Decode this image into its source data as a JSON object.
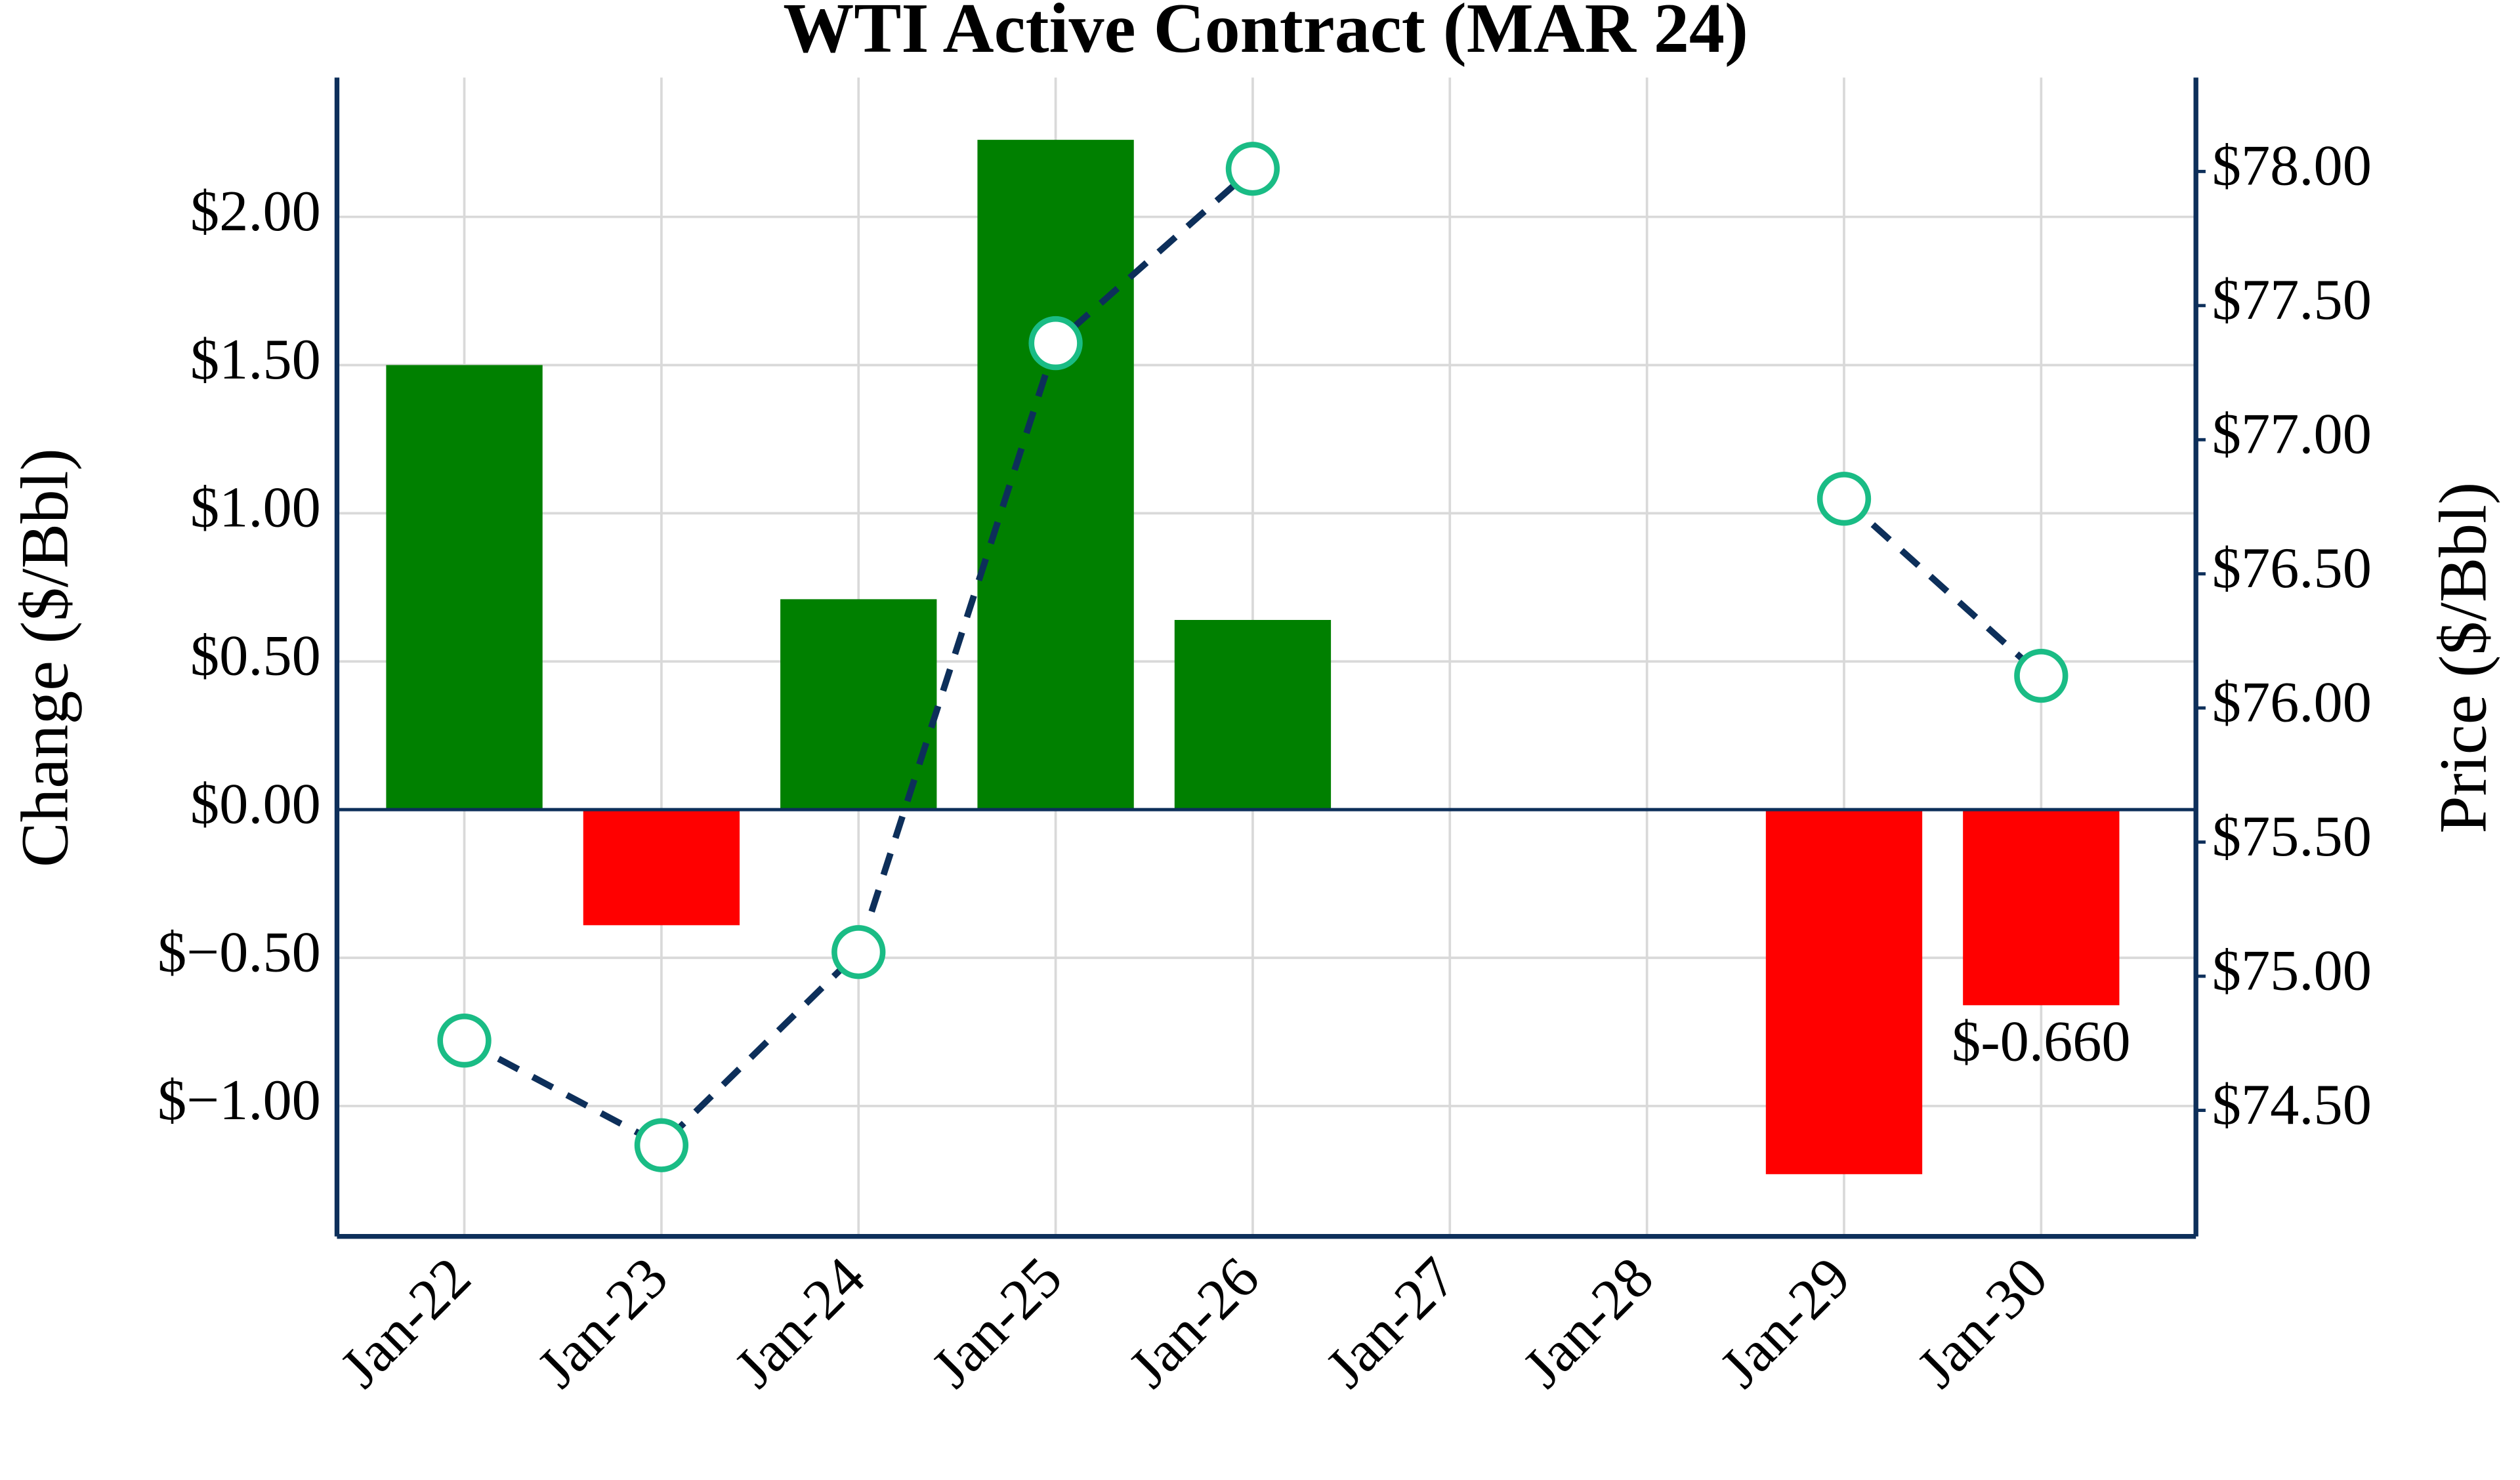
{
  "chart_data": {
    "type": "bar",
    "title": "WTI Active Contract (MAR 24)",
    "y_label": "Change ($/Bbl)",
    "y2_label": "Price ($/Bbl)",
    "categories": [
      "Jan-22",
      "Jan-23",
      "Jan-24",
      "Jan-25",
      "Jan-26",
      "Jan-27",
      "Jan-28",
      "Jan-29",
      "Jan-30"
    ],
    "series": [
      {
        "type": "bar",
        "values": [
          1.5,
          -0.39,
          0.71,
          2.26,
          0.64,
          null,
          null,
          -1.23,
          -0.66
        ],
        "colors": [
          "#008000",
          "#ff0000",
          "#008000",
          "#008000",
          "#008000",
          null,
          null,
          "#ff0000",
          "#ff0000"
        ],
        "value_labels": [
          null,
          null,
          null,
          null,
          null,
          null,
          null,
          null,
          "$-0.660"
        ]
      },
      {
        "type": "line",
        "axis": "y2",
        "values": [
          74.76,
          74.37,
          75.09,
          77.36,
          78.01,
          null,
          null,
          76.78,
          76.12
        ],
        "color": "#0d2f5a",
        "marker_color": "#1abc85",
        "dashed": true
      }
    ],
    "ylim": [
      -1.44,
      2.47
    ],
    "yticks": [
      {
        "value": -1,
        "label": "$−1.00"
      },
      {
        "value": -0.5,
        "label": "$−0.50"
      },
      {
        "value": 0,
        "label": "$0.00"
      },
      {
        "value": 0.5,
        "label": "$0.50"
      },
      {
        "value": 1,
        "label": "$1.00"
      },
      {
        "value": 1.5,
        "label": "$1.50"
      },
      {
        "value": 2,
        "label": "$2.00"
      }
    ],
    "y2lim": [
      74.03,
      78.35
    ],
    "y2ticks": [
      {
        "value": 74.5,
        "label": "$74.50"
      },
      {
        "value": 75,
        "label": "$75.00"
      },
      {
        "value": 75.5,
        "label": "$75.50"
      },
      {
        "value": 76,
        "label": "$76.00"
      },
      {
        "value": 76.5,
        "label": "$76.50"
      },
      {
        "value": 77,
        "label": "$77.00"
      },
      {
        "value": 77.5,
        "label": "$77.50"
      },
      {
        "value": 78,
        "label": "$78.00"
      }
    ],
    "grid": true
  }
}
